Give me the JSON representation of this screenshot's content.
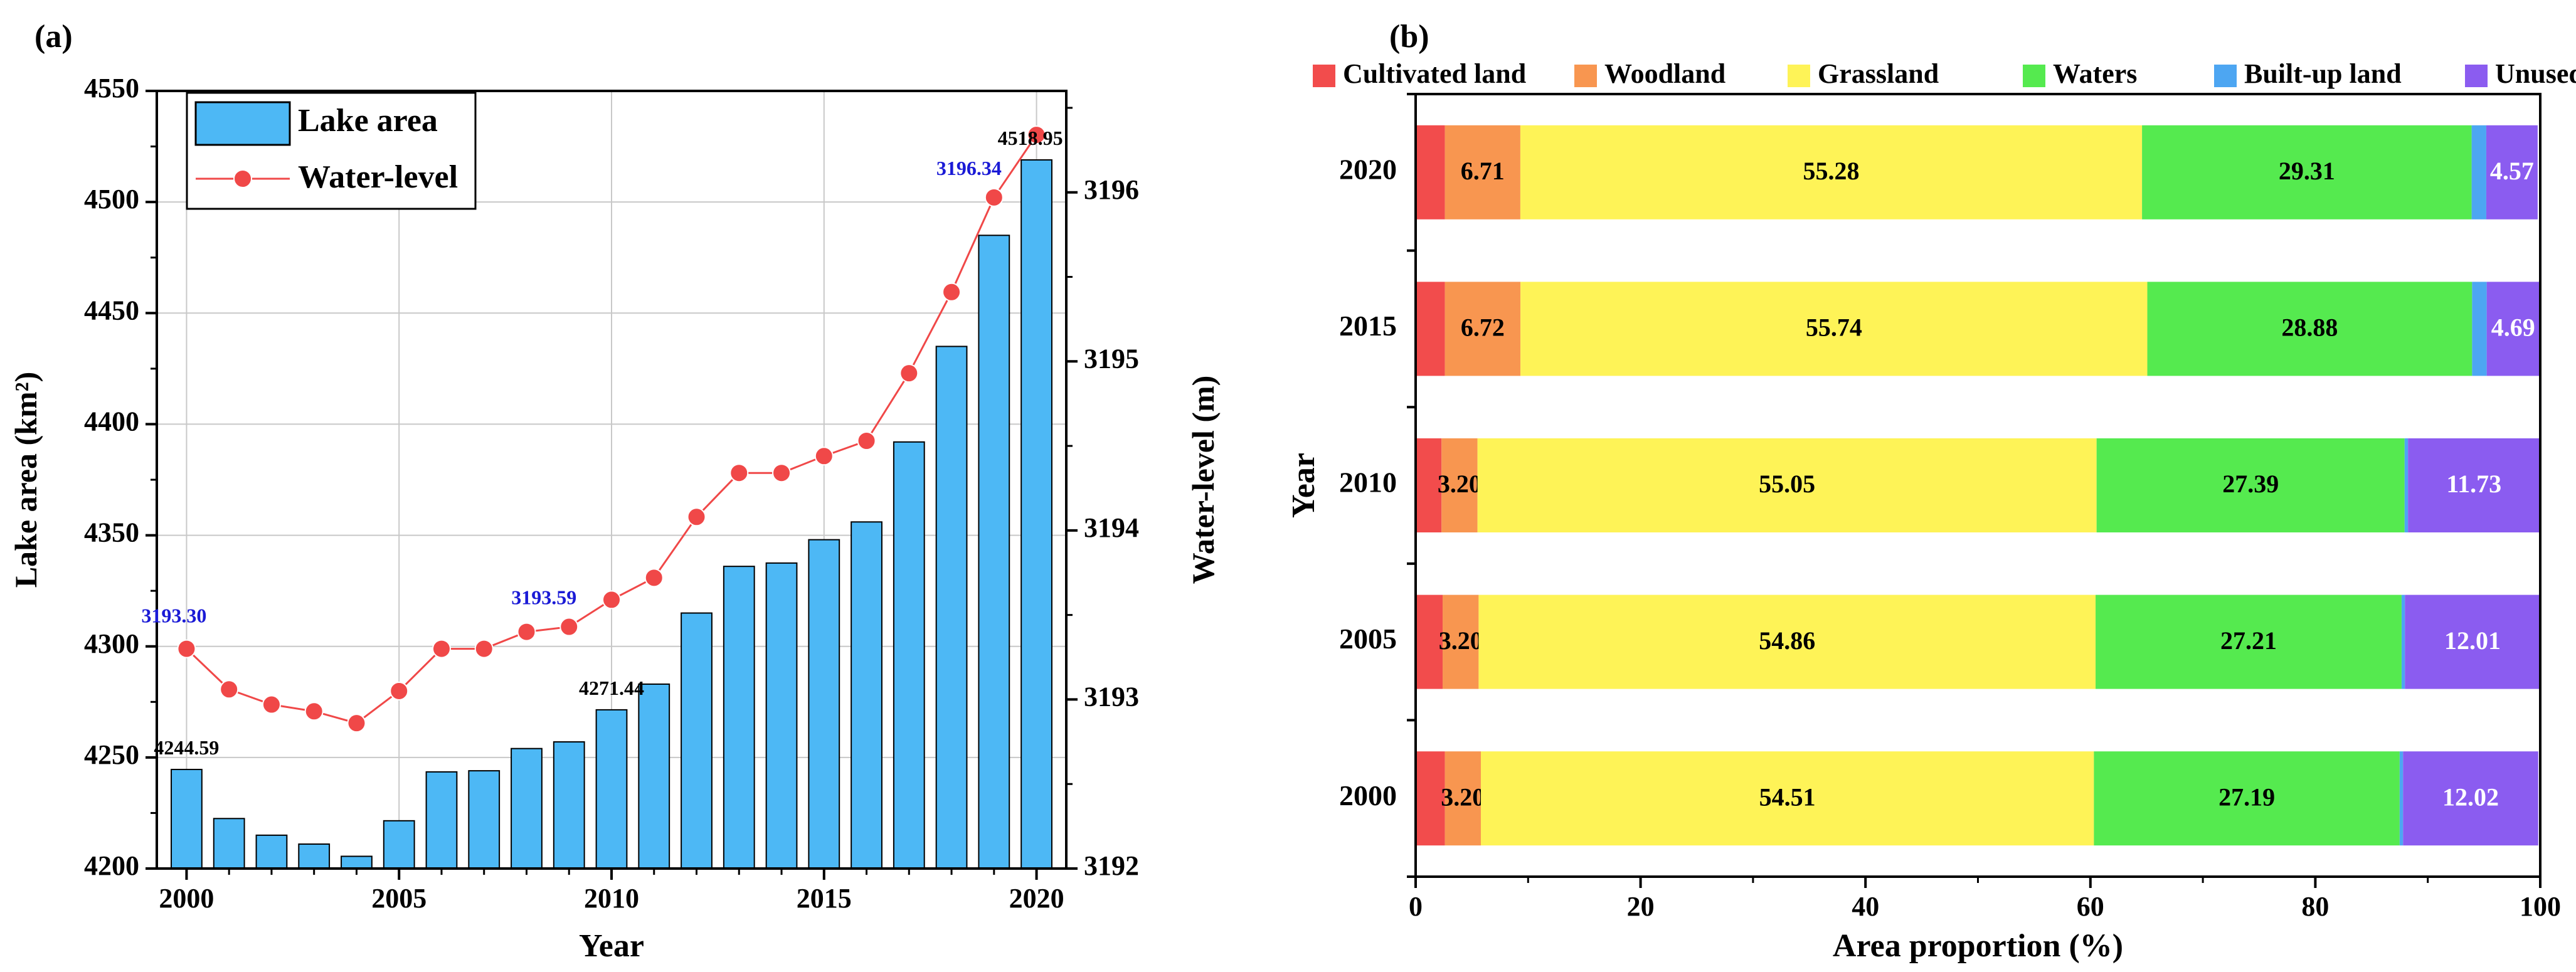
{
  "chart_data": [
    {
      "panel": "(a)",
      "type": "bar+line",
      "xlabel": "Year",
      "ylabel_left": "Lake area (km²)",
      "ylabel_right": "Water-level (m)",
      "xlim": [
        1999.3,
        2020.7
      ],
      "ylim_left": [
        4200,
        4550
      ],
      "ylim_right": [
        3192,
        3196.6
      ],
      "x_ticks": [
        2000,
        2005,
        2010,
        2015,
        2020
      ],
      "y_ticks_left": [
        4200,
        4250,
        4300,
        4350,
        4400,
        4450,
        4500,
        4550
      ],
      "y_ticks_right": [
        3192,
        3193,
        3194,
        3195,
        3196
      ],
      "grid": true,
      "legend": [
        "Lake area",
        "Water-level"
      ],
      "legend_position": "top-left",
      "years": [
        2000,
        2001,
        2002,
        2003,
        2004,
        2005,
        2006,
        2007,
        2008,
        2009,
        2010,
        2011,
        2012,
        2013,
        2014,
        2015,
        2016,
        2017,
        2018,
        2019,
        2020
      ],
      "series": [
        {
          "name": "Lake area",
          "kind": "bar",
          "axis": "left",
          "color": "#4DB8F5",
          "values": [
            4244.59,
            4222.5,
            4215.0,
            4211.0,
            4205.5,
            4221.5,
            4243.5,
            4244.0,
            4254.0,
            4257.0,
            4271.44,
            4283.0,
            4315.0,
            4336.0,
            4337.5,
            4348.0,
            4356.0,
            4392.0,
            4435.0,
            4485.0,
            4518.95
          ]
        },
        {
          "name": "Water-level",
          "kind": "line",
          "axis": "right",
          "color": "#F04848",
          "values": [
            3193.3,
            3193.06,
            3192.97,
            3192.93,
            3192.86,
            3193.05,
            3193.3,
            3193.3,
            3193.4,
            3193.43,
            3193.59,
            3193.72,
            3194.08,
            3194.34,
            3194.34,
            3194.44,
            3194.53,
            3194.93,
            3195.41,
            3195.97,
            3196.34
          ]
        }
      ],
      "annotations": [
        {
          "text": "4244.59",
          "series": "Lake area",
          "year": 2000,
          "color": "#000000"
        },
        {
          "text": "4271.44",
          "series": "Lake area",
          "year": 2010,
          "color": "#000000"
        },
        {
          "text": "4518.95",
          "series": "Lake area",
          "year": 2020,
          "color": "#000000"
        },
        {
          "text": "3193.30",
          "series": "Water-level",
          "year": 2000,
          "color": "#1A1AD6"
        },
        {
          "text": "3193.59",
          "series": "Water-level",
          "year": 2009,
          "color": "#1A1AD6"
        },
        {
          "text": "3196.34",
          "series": "Water-level",
          "year": 2019,
          "color": "#1A1AD6"
        }
      ]
    },
    {
      "panel": "(b)",
      "type": "stacked-horizontal-bar",
      "xlabel": "Area proportion (%)",
      "ylabel": "Year",
      "xlim": [
        0,
        100
      ],
      "x_ticks": [
        0,
        20,
        40,
        60,
        80,
        100
      ],
      "categories": [
        "2020",
        "2015",
        "2010",
        "2005",
        "2000"
      ],
      "legend_position": "top",
      "series": [
        {
          "name": "Cultivated land",
          "color": "#F24C4C",
          "values": [
            2.6,
            2.6,
            2.3,
            2.4,
            2.6
          ],
          "labels": [
            "",
            "",
            "",
            "",
            ""
          ]
        },
        {
          "name": "Woodland",
          "color": "#F89650",
          "values": [
            6.71,
            6.72,
            3.2,
            3.2,
            3.2
          ],
          "labels": [
            "6.71",
            "6.72",
            "3.20",
            "3.20",
            "3.20"
          ]
        },
        {
          "name": "Grassland",
          "color": "#FEF357",
          "values": [
            55.28,
            55.74,
            55.05,
            54.86,
            54.51
          ],
          "labels": [
            "55.28",
            "55.74",
            "55.05",
            "54.86",
            "54.51"
          ]
        },
        {
          "name": "Waters",
          "color": "#55EA4F",
          "values": [
            29.31,
            28.88,
            27.39,
            27.21,
            27.19
          ],
          "labels": [
            "29.31",
            "28.88",
            "27.39",
            "27.21",
            "27.19"
          ]
        },
        {
          "name": "Built-up land",
          "color": "#4DA6F2",
          "values": [
            1.3,
            1.3,
            0.3,
            0.3,
            0.3
          ],
          "labels": [
            "",
            "",
            "",
            "",
            ""
          ]
        },
        {
          "name": "Unused land",
          "color": "#8B5CF0",
          "values": [
            4.57,
            4.69,
            11.73,
            12.01,
            12.02
          ],
          "labels": [
            "4.57",
            "4.69",
            "11.73",
            "12.01",
            "12.02"
          ]
        }
      ]
    }
  ]
}
